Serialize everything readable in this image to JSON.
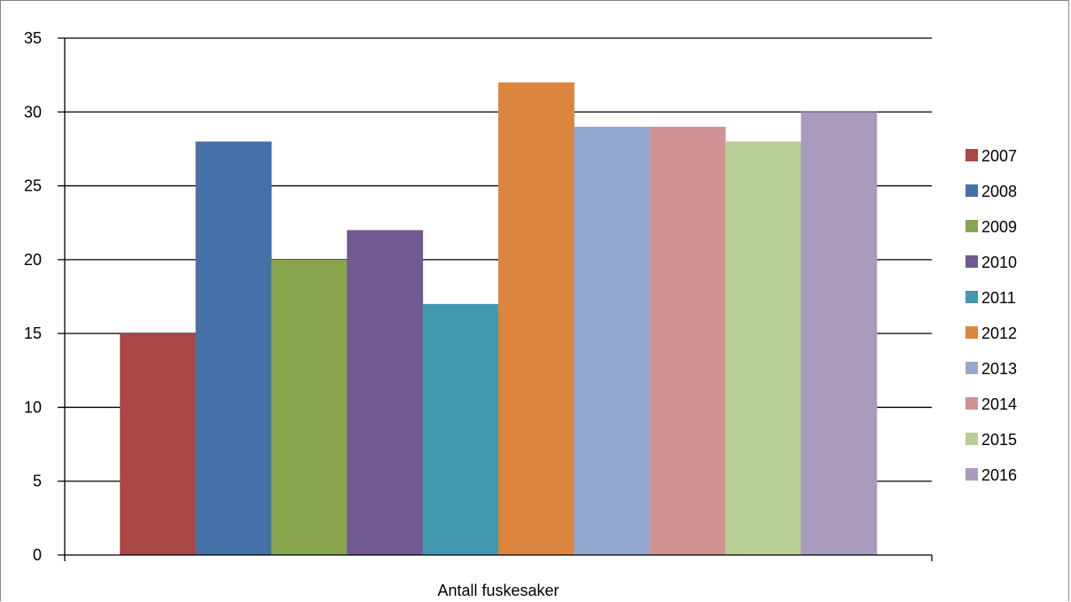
{
  "chart_data": {
    "type": "bar",
    "categories": [
      "Antall fuskesaker"
    ],
    "series": [
      {
        "name": "2007",
        "values": [
          15
        ],
        "color": "#A84746"
      },
      {
        "name": "2008",
        "values": [
          28
        ],
        "color": "#4571A8"
      },
      {
        "name": "2009",
        "values": [
          20
        ],
        "color": "#88A54E"
      },
      {
        "name": "2010",
        "values": [
          22
        ],
        "color": "#705A8F"
      },
      {
        "name": "2011",
        "values": [
          17
        ],
        "color": "#4299B0"
      },
      {
        "name": "2012",
        "values": [
          32
        ],
        "color": "#DC853E"
      },
      {
        "name": "2013",
        "values": [
          29
        ],
        "color": "#93A9CF"
      },
      {
        "name": "2014",
        "values": [
          29
        ],
        "color": "#D19293"
      },
      {
        "name": "2015",
        "values": [
          28
        ],
        "color": "#B9CD96"
      },
      {
        "name": "2016",
        "values": [
          30
        ],
        "color": "#A99BBD"
      }
    ],
    "yticks": [
      "0",
      "5",
      "10",
      "15",
      "20",
      "25",
      "30",
      "35"
    ],
    "ylim": [
      0,
      35
    ],
    "grid": true,
    "legend_position": "right"
  }
}
